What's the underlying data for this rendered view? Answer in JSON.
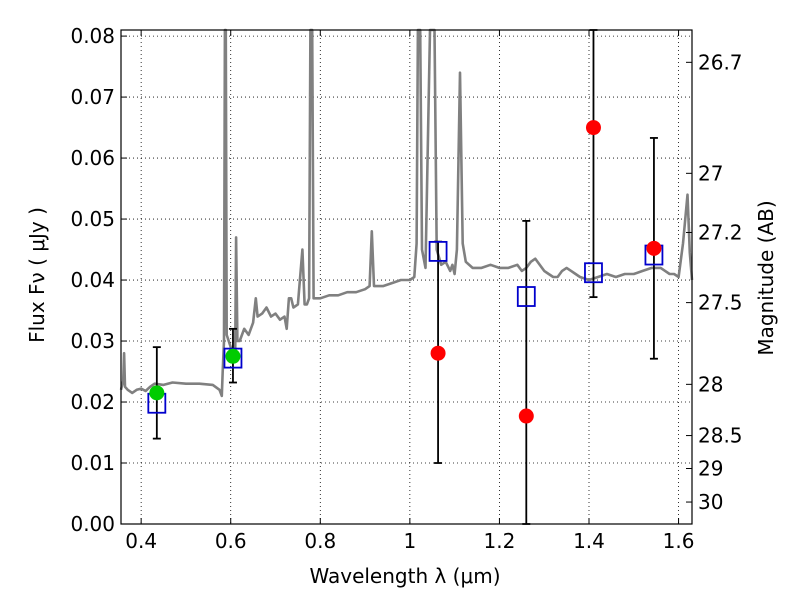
{
  "chart_data": {
    "type": "scatter",
    "title": "",
    "xlabel": "Wavelength  λ (μm)",
    "ylabel": "Flux  Fν  ( μJy )",
    "ylabel_right": "Magnitude (AB)",
    "xlim": [
      0.355,
      1.63
    ],
    "ylim": [
      0.0,
      0.081
    ],
    "grid": true,
    "xticks": [
      0.4,
      0.6,
      0.8,
      1.0,
      1.2,
      1.4,
      1.6
    ],
    "xtick_labels": [
      "0.4",
      "0.6",
      "0.8",
      "1",
      "1.2",
      "1.4",
      "1.6"
    ],
    "yticks": [
      0.0,
      0.01,
      0.02,
      0.03,
      0.04,
      0.05,
      0.06,
      0.07,
      0.08
    ],
    "ytick_labels": [
      "0.00",
      "0.01",
      "0.02",
      "0.03",
      "0.04",
      "0.05",
      "0.06",
      "0.07",
      "0.08"
    ],
    "right_ticks": [
      {
        "label": "26.7",
        "flux": 0.0757
      },
      {
        "label": "27",
        "flux": 0.0575
      },
      {
        "label": "27.2",
        "flux": 0.0478
      },
      {
        "label": "27.5",
        "flux": 0.0363
      },
      {
        "label": "28",
        "flux": 0.0229
      },
      {
        "label": "28.5",
        "flux": 0.0145
      },
      {
        "label": "29",
        "flux": 0.0091
      },
      {
        "label": "30",
        "flux": 0.0036
      }
    ],
    "series": [
      {
        "kind": "model_spectrum",
        "color": "#808080",
        "points": [
          [
            0.355,
            0.022
          ],
          [
            0.36,
            0.0235
          ],
          [
            0.362,
            0.028
          ],
          [
            0.364,
            0.0225
          ],
          [
            0.37,
            0.022
          ],
          [
            0.38,
            0.0215
          ],
          [
            0.39,
            0.022
          ],
          [
            0.4,
            0.0222
          ],
          [
            0.41,
            0.0218
          ],
          [
            0.42,
            0.0225
          ],
          [
            0.43,
            0.023
          ],
          [
            0.45,
            0.0228
          ],
          [
            0.47,
            0.0232
          ],
          [
            0.5,
            0.023
          ],
          [
            0.53,
            0.023
          ],
          [
            0.56,
            0.0228
          ],
          [
            0.575,
            0.022
          ],
          [
            0.58,
            0.021
          ],
          [
            0.582,
            0.025
          ],
          [
            0.585,
            0.03
          ],
          [
            0.587,
            0.081
          ],
          [
            0.589,
            0.081
          ],
          [
            0.591,
            0.031
          ],
          [
            0.6,
            0.029
          ],
          [
            0.61,
            0.028
          ],
          [
            0.612,
            0.047
          ],
          [
            0.615,
            0.03
          ],
          [
            0.62,
            0.03
          ],
          [
            0.63,
            0.032
          ],
          [
            0.64,
            0.031
          ],
          [
            0.65,
            0.033
          ],
          [
            0.656,
            0.037
          ],
          [
            0.66,
            0.034
          ],
          [
            0.67,
            0.0345
          ],
          [
            0.68,
            0.0355
          ],
          [
            0.69,
            0.034
          ],
          [
            0.7,
            0.0345
          ],
          [
            0.71,
            0.0335
          ],
          [
            0.72,
            0.034
          ],
          [
            0.725,
            0.032
          ],
          [
            0.73,
            0.037
          ],
          [
            0.735,
            0.037
          ],
          [
            0.74,
            0.0355
          ],
          [
            0.75,
            0.036
          ],
          [
            0.76,
            0.045
          ],
          [
            0.765,
            0.036
          ],
          [
            0.77,
            0.036
          ],
          [
            0.775,
            0.037
          ],
          [
            0.778,
            0.081
          ],
          [
            0.782,
            0.081
          ],
          [
            0.785,
            0.037
          ],
          [
            0.8,
            0.037
          ],
          [
            0.82,
            0.0375
          ],
          [
            0.84,
            0.0375
          ],
          [
            0.86,
            0.038
          ],
          [
            0.88,
            0.038
          ],
          [
            0.9,
            0.0385
          ],
          [
            0.91,
            0.039
          ],
          [
            0.915,
            0.048
          ],
          [
            0.92,
            0.039
          ],
          [
            0.94,
            0.039
          ],
          [
            0.96,
            0.0395
          ],
          [
            0.98,
            0.04
          ],
          [
            1.0,
            0.04
          ],
          [
            1.01,
            0.0405
          ],
          [
            1.015,
            0.046
          ],
          [
            1.018,
            0.081
          ],
          [
            1.023,
            0.081
          ],
          [
            1.027,
            0.045
          ],
          [
            1.035,
            0.042
          ],
          [
            1.045,
            0.081
          ],
          [
            1.055,
            0.081
          ],
          [
            1.06,
            0.045
          ],
          [
            1.07,
            0.0425
          ],
          [
            1.08,
            0.043
          ],
          [
            1.09,
            0.0415
          ],
          [
            1.095,
            0.0425
          ],
          [
            1.1,
            0.041
          ],
          [
            1.105,
            0.045
          ],
          [
            1.112,
            0.074
          ],
          [
            1.118,
            0.046
          ],
          [
            1.125,
            0.043
          ],
          [
            1.14,
            0.042
          ],
          [
            1.16,
            0.042
          ],
          [
            1.18,
            0.0425
          ],
          [
            1.2,
            0.042
          ],
          [
            1.22,
            0.042
          ],
          [
            1.24,
            0.0425
          ],
          [
            1.25,
            0.0415
          ],
          [
            1.26,
            0.042
          ],
          [
            1.27,
            0.043
          ],
          [
            1.28,
            0.0435
          ],
          [
            1.29,
            0.0425
          ],
          [
            1.3,
            0.0415
          ],
          [
            1.31,
            0.041
          ],
          [
            1.32,
            0.0405
          ],
          [
            1.33,
            0.0405
          ],
          [
            1.34,
            0.0415
          ],
          [
            1.35,
            0.042
          ],
          [
            1.36,
            0.0415
          ],
          [
            1.37,
            0.041
          ],
          [
            1.38,
            0.0405
          ],
          [
            1.4,
            0.04
          ],
          [
            1.42,
            0.0405
          ],
          [
            1.44,
            0.041
          ],
          [
            1.46,
            0.0405
          ],
          [
            1.48,
            0.041
          ],
          [
            1.5,
            0.041
          ],
          [
            1.52,
            0.0415
          ],
          [
            1.54,
            0.042
          ],
          [
            1.56,
            0.042
          ],
          [
            1.57,
            0.0415
          ],
          [
            1.58,
            0.041
          ],
          [
            1.59,
            0.041
          ],
          [
            1.6,
            0.0405
          ],
          [
            1.61,
            0.046
          ],
          [
            1.62,
            0.054
          ],
          [
            1.625,
            0.0445
          ],
          [
            1.63,
            0.04
          ]
        ]
      },
      {
        "kind": "model_photometry",
        "marker": "open-square",
        "color": "#0000cc",
        "points": [
          [
            0.435,
            0.0198
          ],
          [
            0.605,
            0.0272
          ],
          [
            1.063,
            0.0447
          ],
          [
            1.26,
            0.0373
          ],
          [
            1.41,
            0.0412
          ],
          [
            1.545,
            0.0441
          ]
        ]
      },
      {
        "kind": "detections",
        "marker": "filled-circle",
        "color": "#00cc00",
        "points": [
          {
            "x": 0.435,
            "y": 0.0215,
            "ylo": 0.014,
            "yhi": 0.029
          },
          {
            "x": 0.605,
            "y": 0.0275,
            "ylo": 0.0232,
            "yhi": 0.032
          }
        ]
      },
      {
        "kind": "measurements",
        "marker": "filled-circle",
        "color": "#ff0000",
        "points": [
          {
            "x": 1.063,
            "y": 0.028,
            "ylo": 0.01,
            "yhi": 0.0463
          },
          {
            "x": 1.26,
            "y": 0.0177,
            "ylo": 0.0,
            "yhi": 0.0497
          },
          {
            "x": 1.41,
            "y": 0.065,
            "ylo": 0.0372,
            "yhi": 0.081
          },
          {
            "x": 1.545,
            "y": 0.0452,
            "ylo": 0.0271,
            "yhi": 0.0633
          }
        ]
      }
    ]
  }
}
